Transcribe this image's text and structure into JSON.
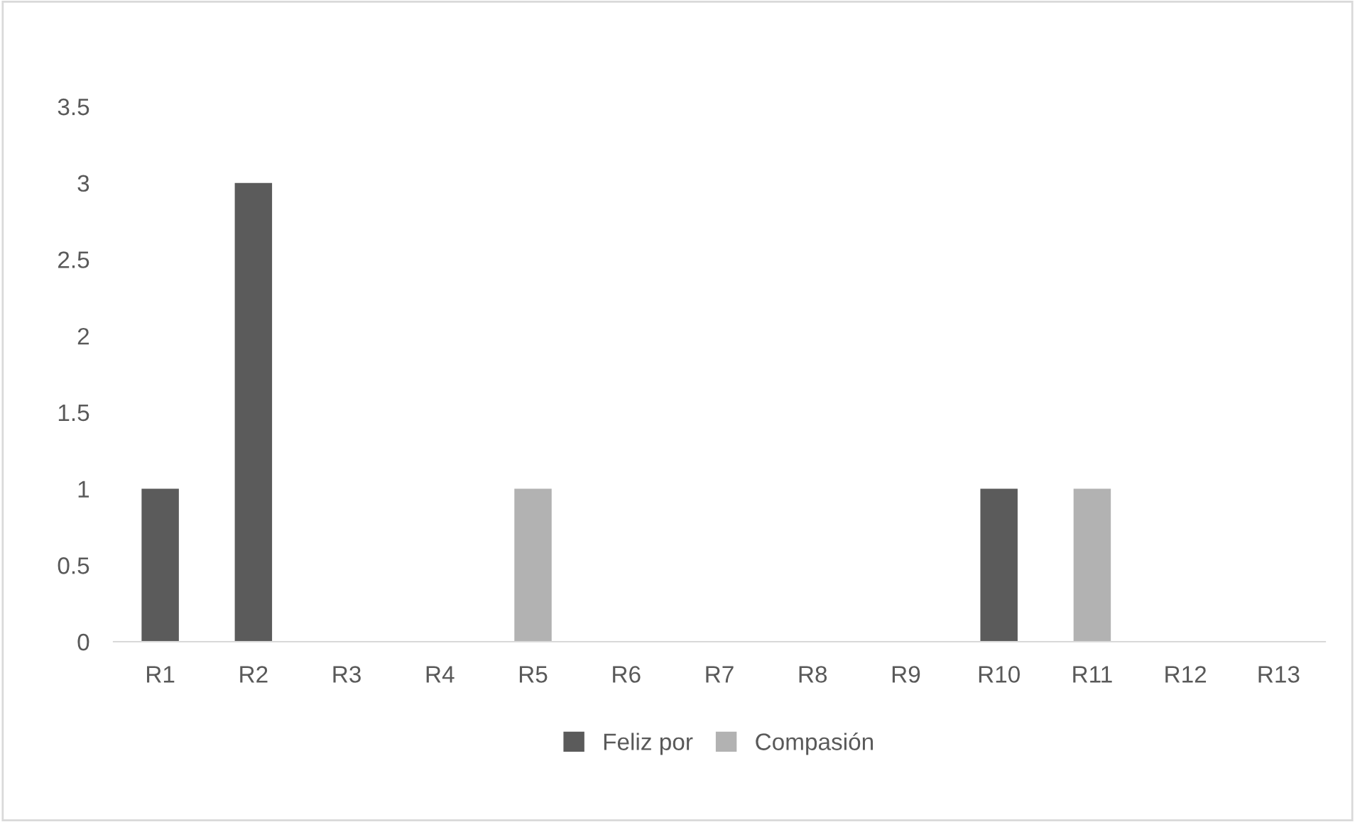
{
  "chart_data": {
    "type": "bar",
    "stacked": true,
    "categories": [
      "R1",
      "R2",
      "R3",
      "R4",
      "R5",
      "R6",
      "R7",
      "R8",
      "R9",
      "R10",
      "R11",
      "R12",
      "R13"
    ],
    "series": [
      {
        "name": "Feliz por",
        "color": "#5b5b5b",
        "values": [
          1,
          3,
          0,
          0,
          0,
          0,
          0,
          0,
          0,
          1,
          0,
          0,
          0
        ]
      },
      {
        "name": "Compasión",
        "color": "#b2b2b2",
        "values": [
          0,
          0,
          0,
          0,
          1,
          0,
          0,
          0,
          0,
          0,
          1,
          0,
          0
        ]
      }
    ],
    "ylim": [
      0,
      3.5
    ],
    "yticks": [
      0,
      0.5,
      1,
      1.5,
      2,
      2.5,
      3,
      3.5
    ],
    "grid": false,
    "legend": "bottom"
  }
}
